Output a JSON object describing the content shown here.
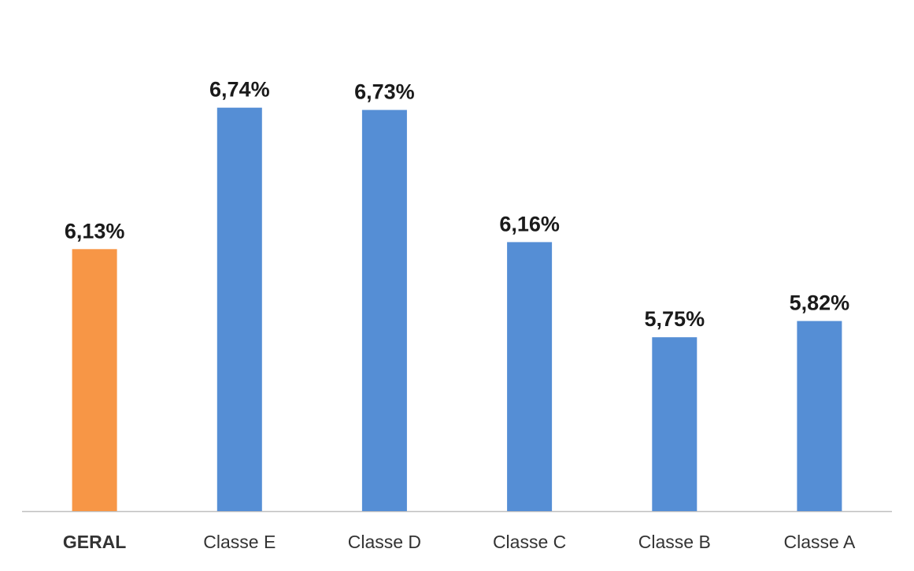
{
  "chart_data": {
    "type": "bar",
    "categories": [
      "GERAL",
      "Classe E",
      "Classe D",
      "Classe C",
      "Classe B",
      "Classe A"
    ],
    "values": [
      6.13,
      6.74,
      6.73,
      6.16,
      5.75,
      5.82
    ],
    "value_labels": [
      "6,13%",
      "6,74%",
      "6,73%",
      "6,16%",
      "5,75%",
      "5,82%"
    ],
    "highlight_category": "GERAL",
    "colors": {
      "highlight": "#F79646",
      "default": "#558ED5",
      "axis": "#BFBFBF"
    },
    "title": "",
    "xlabel": "",
    "ylabel": "",
    "ylim": [
      5.0,
      6.8
    ],
    "grid": false,
    "legend": "none"
  }
}
